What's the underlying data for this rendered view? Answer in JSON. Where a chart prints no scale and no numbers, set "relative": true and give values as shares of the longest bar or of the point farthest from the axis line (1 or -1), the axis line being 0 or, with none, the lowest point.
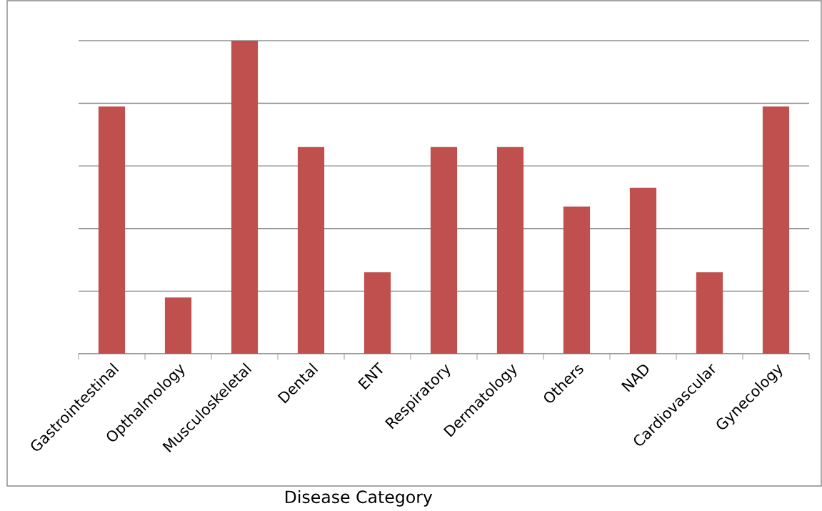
{
  "chart_data": {
    "type": "bar",
    "xlabel": "Disease Category",
    "categories": [
      "Gastrointestinal",
      "Opthalmology",
      "Musculoskeletal",
      "Dental",
      "ENT",
      "Respiratory",
      "Dermatology",
      "Others",
      "NAD",
      "Cardiovascular",
      "Gynecology"
    ],
    "values": [
      0.79,
      0.18,
      1,
      0.66,
      0.26,
      0.66,
      0.66,
      0.47,
      0.53,
      0.26,
      0.79
    ],
    "color": "#c0504d",
    "relative": true,
    "grid": "y",
    "legend": false
  }
}
